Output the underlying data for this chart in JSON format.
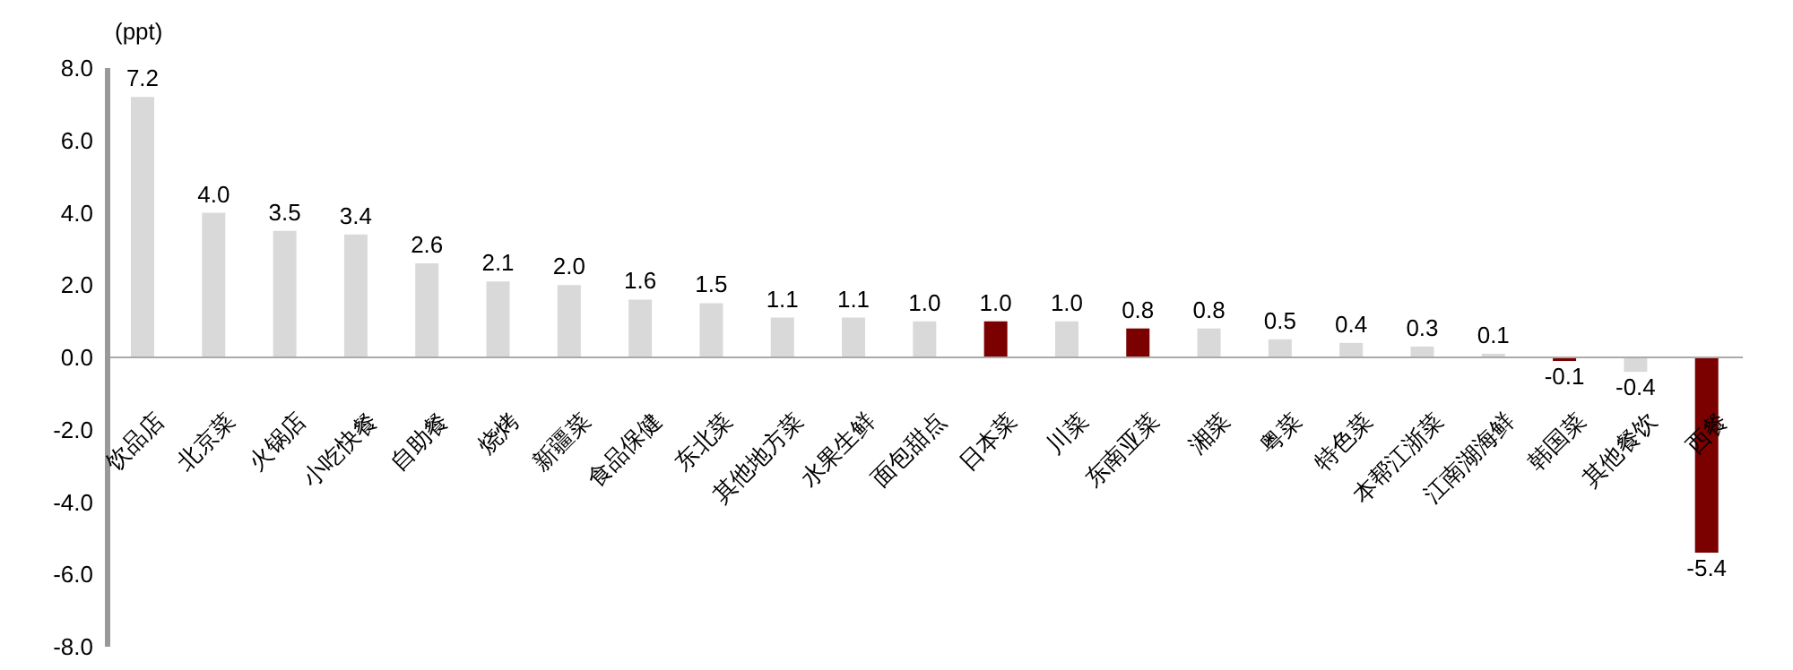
{
  "chart_data": {
    "type": "bar",
    "ylabel": "(ppt)",
    "categories": [
      "饮品店",
      "北京菜",
      "火锅店",
      "小吃快餐",
      "自助餐",
      "烧烤",
      "新疆菜",
      "食品保健",
      "东北菜",
      "其他地方菜",
      "水果生鲜",
      "面包甜点",
      "日本菜",
      "川菜",
      "东南亚菜",
      "湘菜",
      "粤菜",
      "特色菜",
      "本帮江浙菜",
      "江南湖海鲜",
      "韩国菜",
      "其他餐饮",
      "西餐"
    ],
    "values": [
      7.2,
      4.0,
      3.5,
      3.4,
      2.6,
      2.1,
      2.0,
      1.6,
      1.5,
      1.1,
      1.1,
      1.0,
      1.0,
      1.0,
      0.8,
      0.8,
      0.5,
      0.4,
      0.3,
      0.1,
      -0.1,
      -0.4,
      -5.4
    ],
    "colors": [
      "#d9d9d9",
      "#d9d9d9",
      "#d9d9d9",
      "#d9d9d9",
      "#d9d9d9",
      "#d9d9d9",
      "#d9d9d9",
      "#d9d9d9",
      "#d9d9d9",
      "#d9d9d9",
      "#d9d9d9",
      "#d9d9d9",
      "#7b0000",
      "#d9d9d9",
      "#7b0000",
      "#d9d9d9",
      "#d9d9d9",
      "#d9d9d9",
      "#d9d9d9",
      "#d9d9d9",
      "#7b0000",
      "#d9d9d9",
      "#7b0000"
    ],
    "value_labels": [
      "7.2",
      "4.0",
      "3.5",
      "3.4",
      "2.6",
      "2.1",
      "2.0",
      "1.6",
      "1.5",
      "1.1",
      "1.1",
      "1.0",
      "1.0",
      "1.0",
      "0.8",
      "0.8",
      "0.5",
      "0.4",
      "0.3",
      "0.1",
      "-0.1",
      "-0.4",
      "-5.4"
    ],
    "ylim": [
      -8,
      8
    ],
    "yticks": [
      {
        "value": -8,
        "label": "-8.0"
      },
      {
        "value": -6,
        "label": "-6.0"
      },
      {
        "value": -4,
        "label": "-4.0"
      },
      {
        "value": -2,
        "label": "-2.0"
      },
      {
        "value": 0,
        "label": "0.0"
      },
      {
        "value": 2,
        "label": "2.0"
      },
      {
        "value": 4,
        "label": "4.0"
      },
      {
        "value": 6,
        "label": "6.0"
      },
      {
        "value": 8,
        "label": "8.0"
      }
    ],
    "grid": false,
    "legend": false
  }
}
